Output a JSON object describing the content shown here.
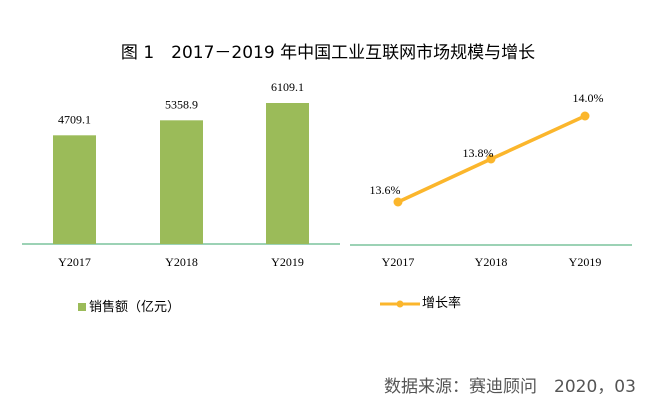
{
  "title": "图 1　2017－2019 年中国工业互联网市场规模与增长",
  "chart_data": [
    {
      "type": "bar",
      "categories": [
        "Y2017",
        "Y2018",
        "Y2019"
      ],
      "series": [
        {
          "name": "销售额（亿元）",
          "values": [
            4709.1,
            5358.9,
            6109.1
          ]
        }
      ],
      "data_labels": [
        "4709.1",
        "5358.9",
        "6109.1"
      ],
      "ylim": [
        0,
        6300
      ],
      "color": "#9bbb59",
      "legend": "bottom-left",
      "grid": false
    },
    {
      "type": "line",
      "categories": [
        "Y2017",
        "Y2018",
        "Y2019"
      ],
      "series": [
        {
          "name": "增长率",
          "values": [
            13.6,
            13.8,
            14.0
          ]
        }
      ],
      "data_labels": [
        "13.6%",
        "13.8%",
        "14.0%"
      ],
      "unit": "%",
      "color": "#fbb62c",
      "legend": "bottom-left",
      "grid": false
    }
  ],
  "source": "数据来源：赛迪顾问　2020，03"
}
